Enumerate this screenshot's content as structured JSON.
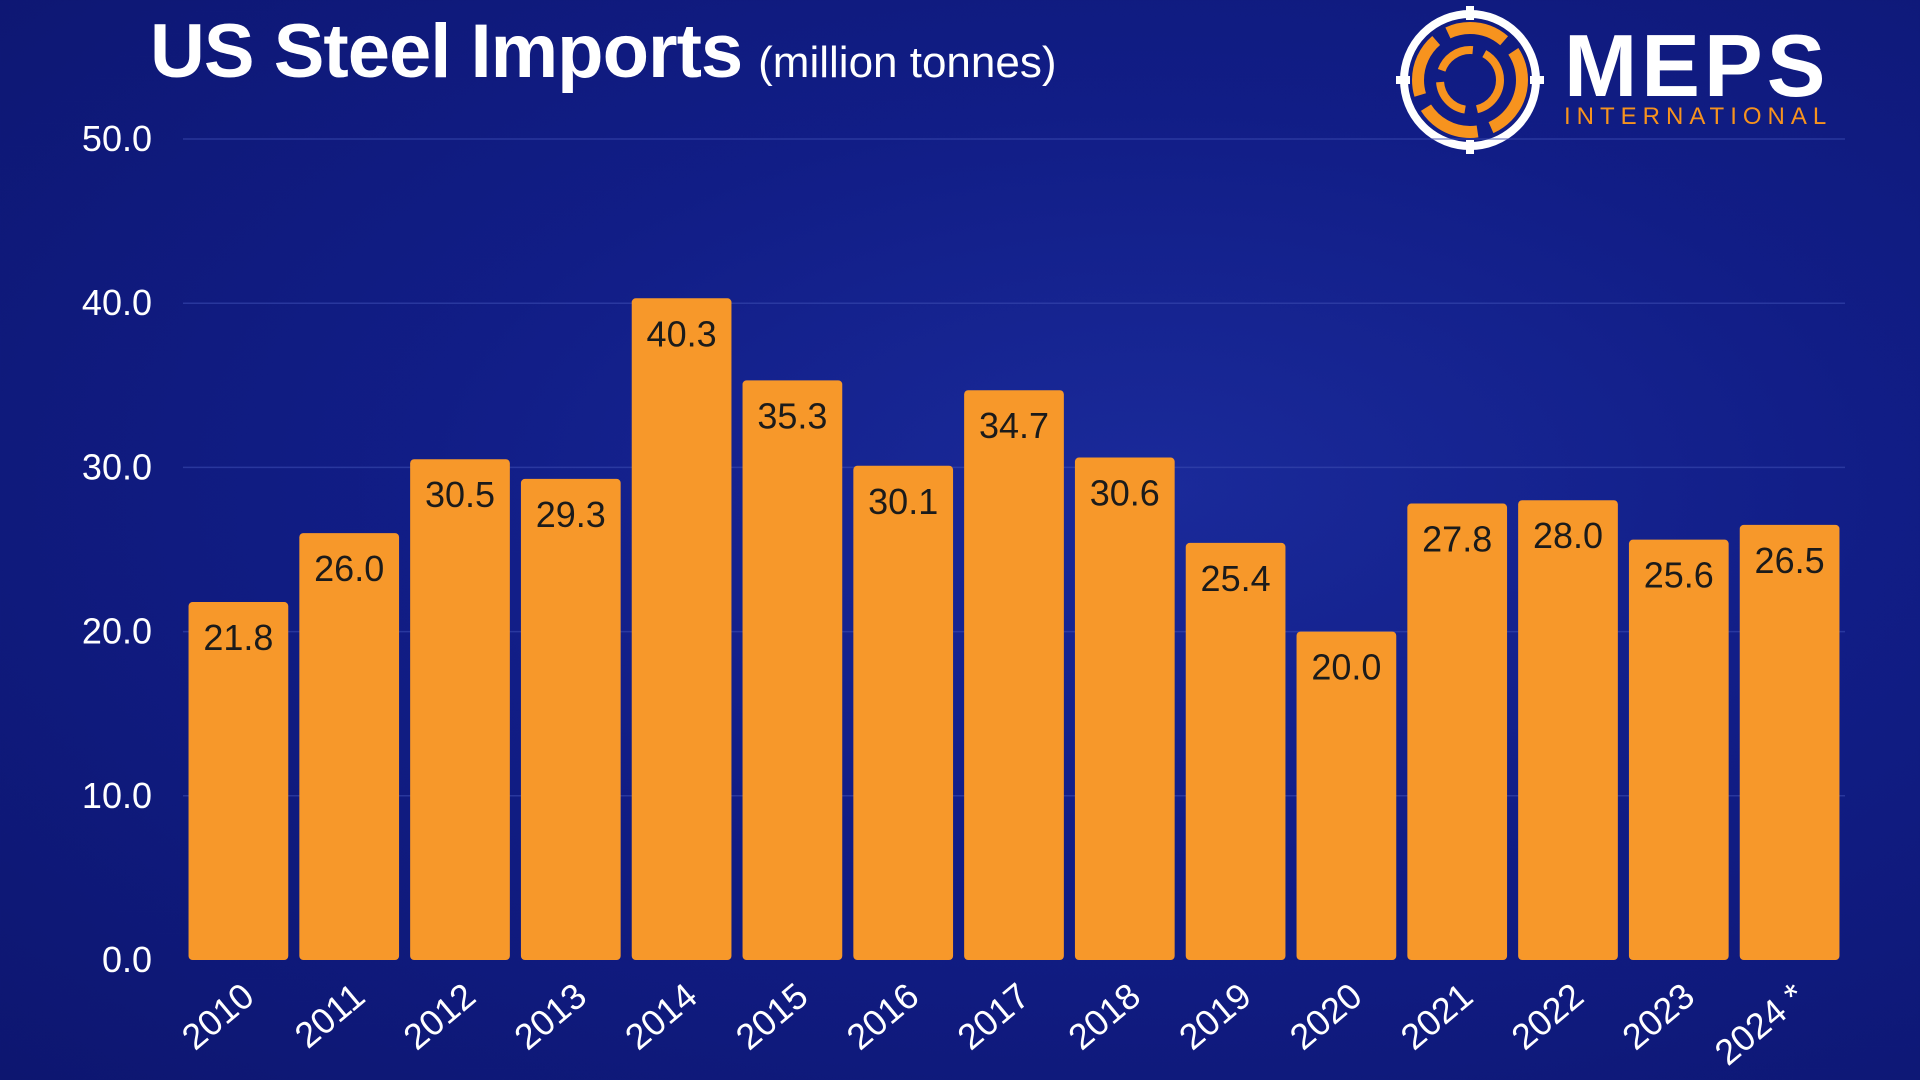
{
  "header": {
    "title": "US Steel Imports",
    "subtitle": "(million tonnes)"
  },
  "logo": {
    "name": "MEPS",
    "tagline": "INTERNATIONAL",
    "icon": "meps-ring-icon"
  },
  "colors": {
    "bar": "#f7982a",
    "background": "#111d86",
    "accent": "#f7931e",
    "grid": "#3a4ab0"
  },
  "chart_data": {
    "type": "bar",
    "title": "US Steel Imports",
    "subtitle": "(million tonnes)",
    "categories": [
      "2010",
      "2011",
      "2012",
      "2013",
      "2014",
      "2015",
      "2016",
      "2017",
      "2018",
      "2019",
      "2020",
      "2021",
      "2022",
      "2023",
      "2024 *"
    ],
    "values": [
      21.8,
      26.0,
      30.5,
      29.3,
      40.3,
      35.3,
      30.1,
      34.7,
      30.6,
      25.4,
      20.0,
      27.8,
      28.0,
      25.6,
      26.5
    ],
    "value_labels": [
      "21.8",
      "26.0",
      "30.5",
      "29.3",
      "40.3",
      "35.3",
      "30.1",
      "34.7",
      "30.6",
      "25.4",
      "20.0",
      "27.8",
      "28.0",
      "25.6",
      "26.5"
    ],
    "yticks": [
      "0.0",
      "10.0",
      "20.0",
      "30.0",
      "40.0",
      "50.0"
    ],
    "ylim": [
      0,
      50
    ],
    "xlabel": "",
    "ylabel": "",
    "grid": true,
    "legend": "none"
  }
}
